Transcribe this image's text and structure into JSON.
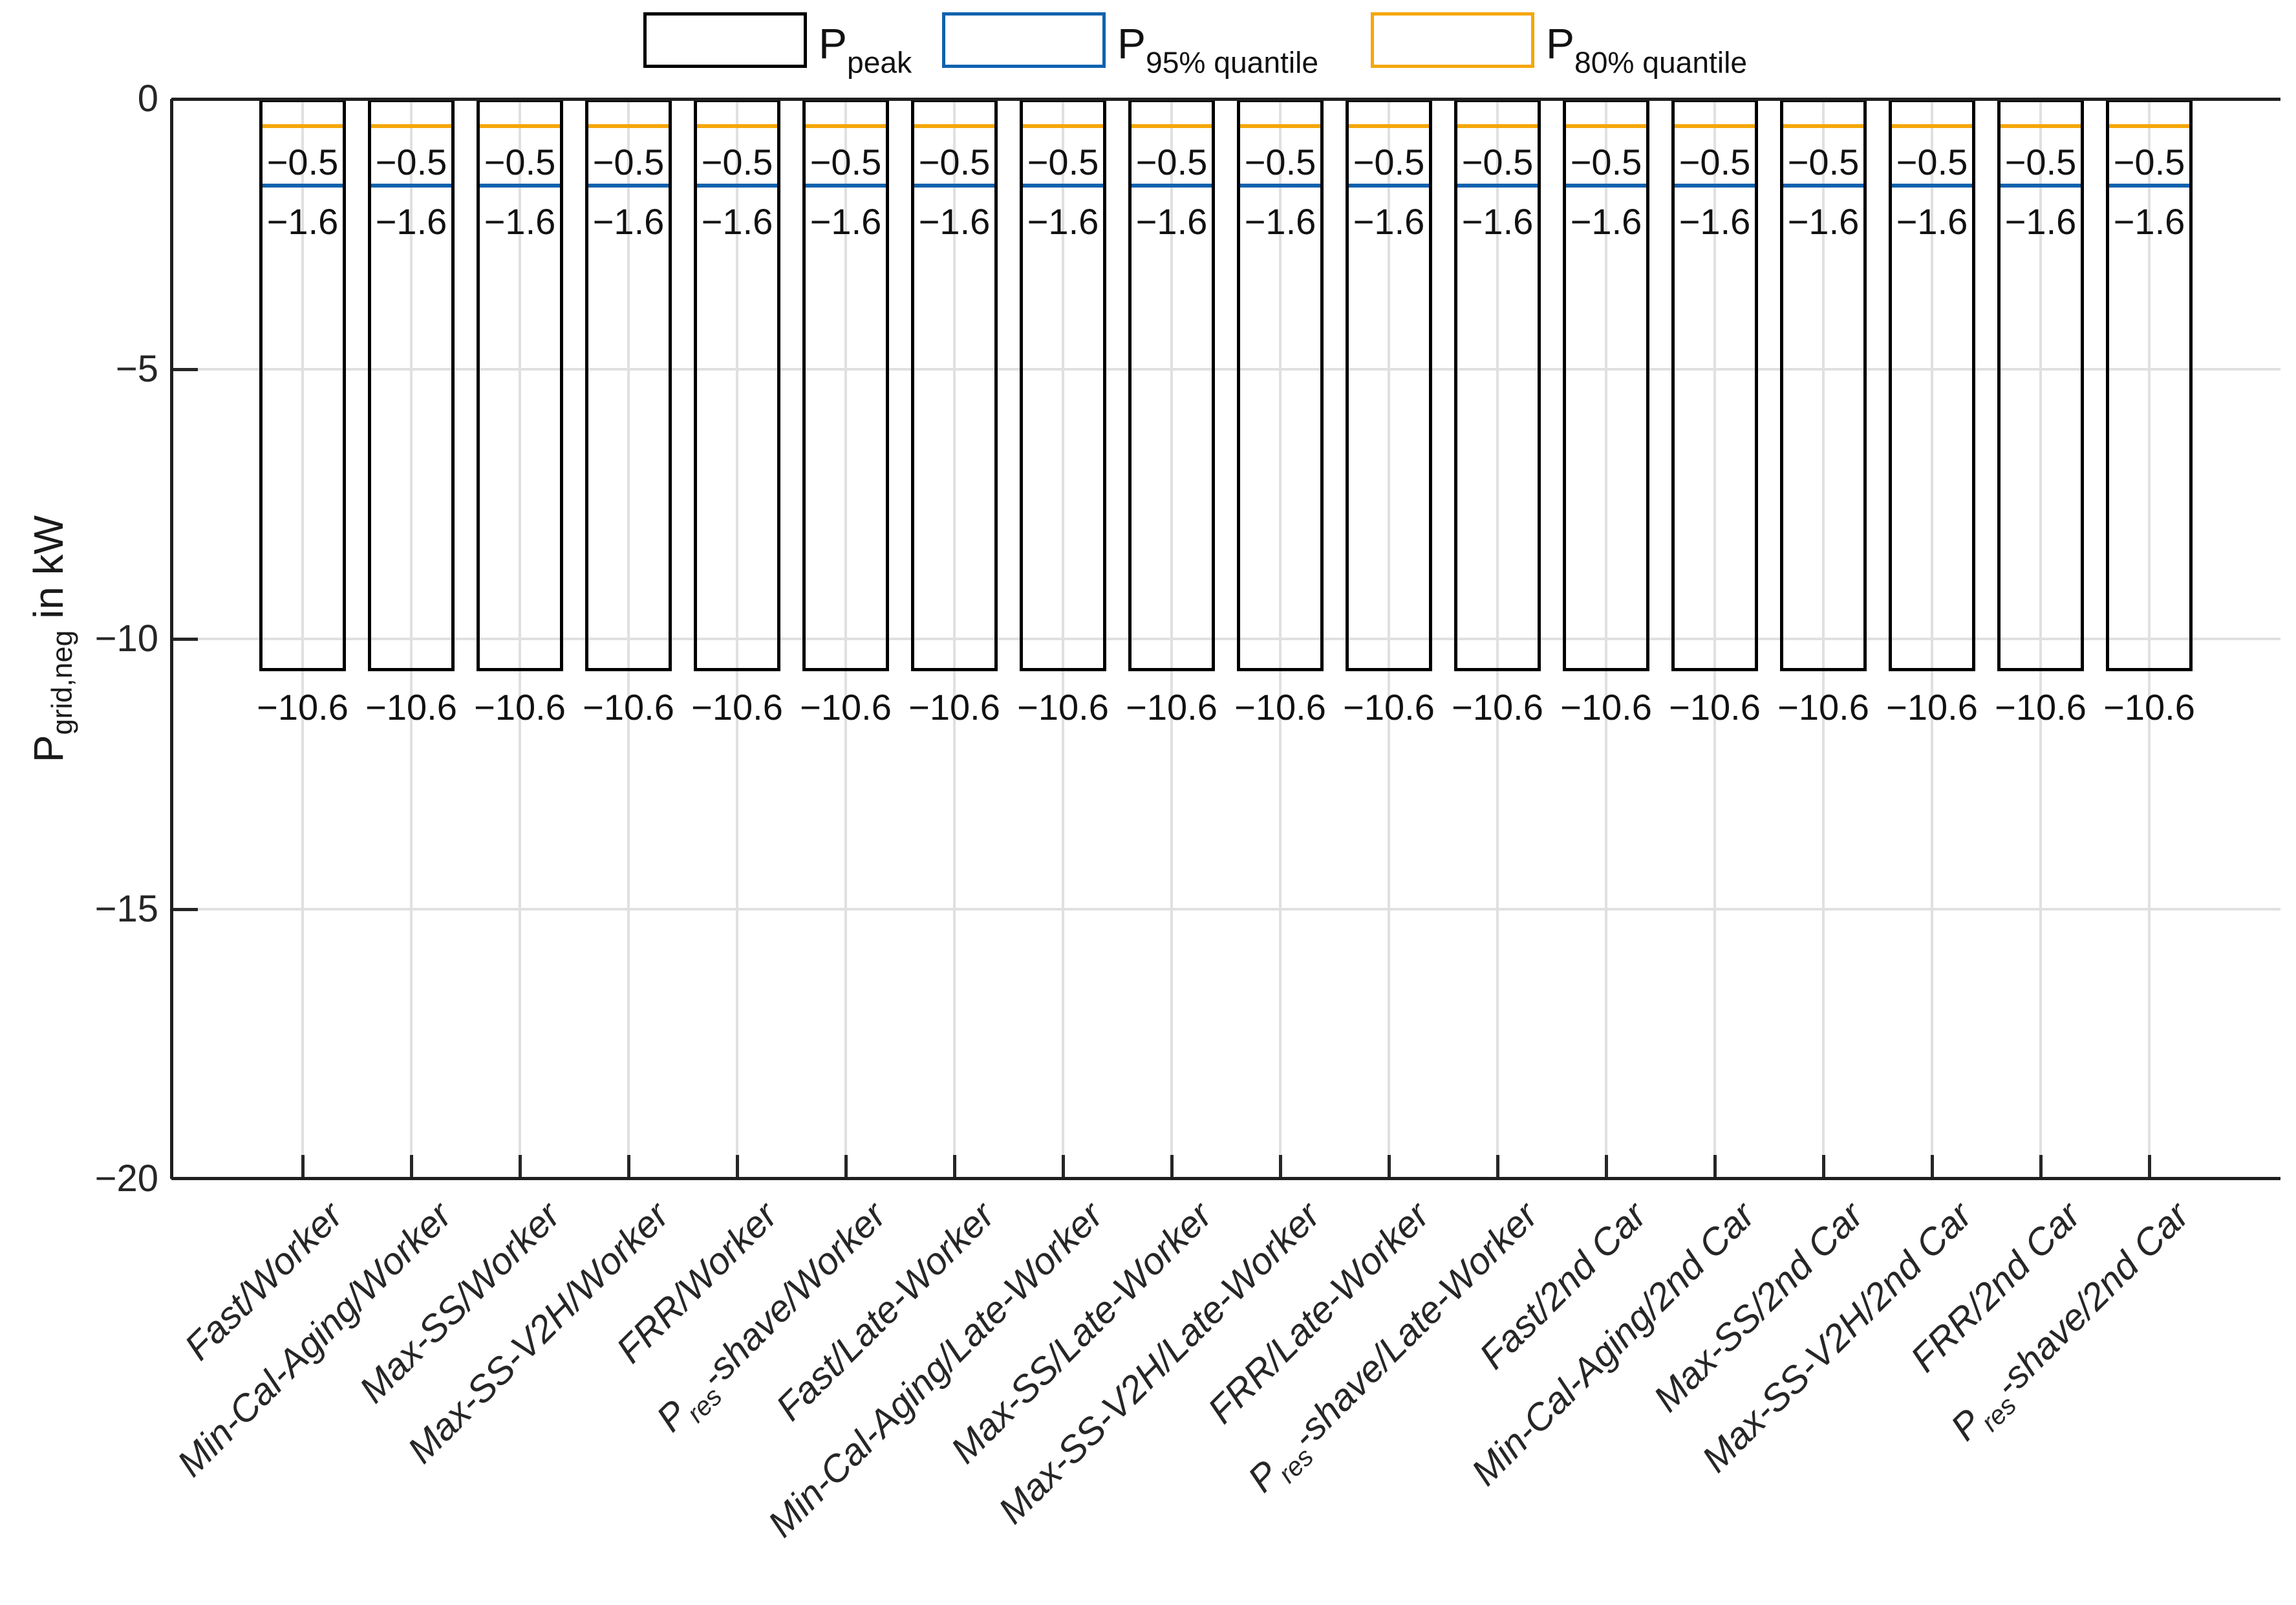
{
  "figure": {
    "background": "#ffffff"
  },
  "chart_data": {
    "type": "bar",
    "title": "",
    "xlabel": "",
    "ylabel": "P_{grid,neg} in kW",
    "ylim": [
      -20,
      0
    ],
    "yticks": [
      0,
      -5,
      -10,
      -15,
      -20
    ],
    "ytick_labels": [
      "0",
      "−5",
      "−10",
      "−15",
      "−20"
    ],
    "grid": true,
    "legend_position": "top",
    "bar_fill": "none",
    "categories": [
      "Fast/Worker",
      "Min-Cal-Aging/Worker",
      "Max-SS/Worker",
      "Max-SS-V2H/Worker",
      "FRR/Worker",
      "P_{res}-shave/Worker",
      "Fast/Late-Worker",
      "Min-Cal-Aging/Late-Worker",
      "Max-SS/Late-Worker",
      "Max-SS-V2H/Late-Worker",
      "FRR/Late-Worker",
      "P_{res}-shave/Late-Worker",
      "Fast/2nd Car",
      "Min-Cal-Aging/2nd Car",
      "Max-SS/2nd Car",
      "Max-SS-V2H/2nd Car",
      "FRR/2nd Car",
      "P_{res}-shave/2nd Car"
    ],
    "series": [
      {
        "name": "P_{peak}",
        "role": "peak",
        "style": "bar-outline",
        "color": "#000000",
        "values": [
          -10.6,
          -10.6,
          -10.6,
          -10.6,
          -10.6,
          -10.6,
          -10.6,
          -10.6,
          -10.6,
          -10.6,
          -10.6,
          -10.6,
          -10.6,
          -10.6,
          -10.6,
          -10.6,
          -10.6,
          -10.6
        ],
        "value_label": "−10.6"
      },
      {
        "name": "P_{95% quantile}",
        "role": "q95",
        "style": "line",
        "color": "#1062AE",
        "values": [
          -1.6,
          -1.6,
          -1.6,
          -1.6,
          -1.6,
          -1.6,
          -1.6,
          -1.6,
          -1.6,
          -1.6,
          -1.6,
          -1.6,
          -1.6,
          -1.6,
          -1.6,
          -1.6,
          -1.6,
          -1.6
        ],
        "value_label": "−1.6"
      },
      {
        "name": "P_{80% quantile}",
        "role": "q80",
        "style": "line",
        "color": "#F5A70A",
        "values": [
          -0.5,
          -0.5,
          -0.5,
          -0.5,
          -0.5,
          -0.5,
          -0.5,
          -0.5,
          -0.5,
          -0.5,
          -0.5,
          -0.5,
          -0.5,
          -0.5,
          -0.5,
          -0.5,
          -0.5,
          -0.5
        ],
        "value_label": "−0.5"
      }
    ]
  },
  "colors": {
    "axis": "#1f1f1f",
    "tick_text": "#262626",
    "gridline": "#e0e0e0",
    "bar_outline": "#000000",
    "q95_line": "#1062AE",
    "q80_line": "#F5A70A"
  }
}
